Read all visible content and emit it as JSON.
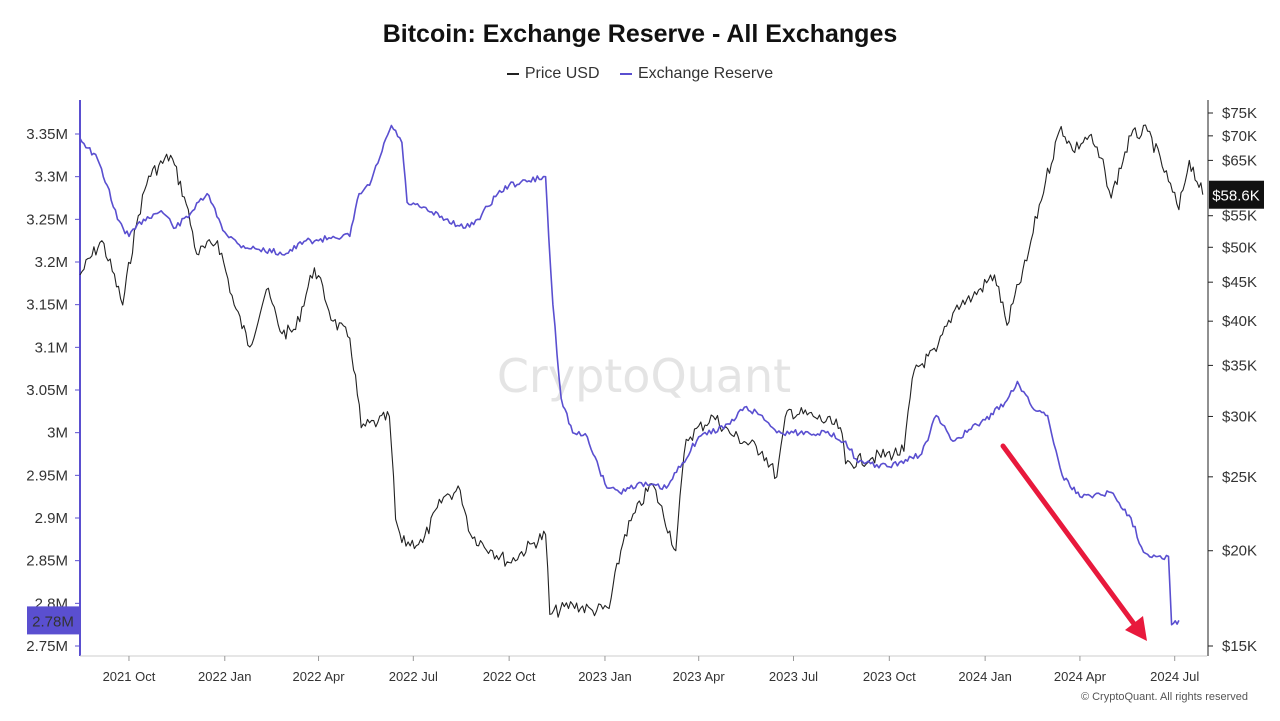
{
  "title": "Bitcoin: Exchange Reserve - All Exchanges",
  "legend": {
    "price_label": "Price USD",
    "reserve_label": "Exchange Reserve"
  },
  "watermark": "CryptoQuant",
  "copyright": "© CryptoQuant. All rights reserved",
  "colors": {
    "price": "#222222",
    "reserve": "#5a4fd0",
    "arrow": "#e8193c",
    "price_badge": "#111111",
    "reserve_badge": "#5a4fd0"
  },
  "chart_data": {
    "type": "line",
    "title": "Bitcoin: Exchange Reserve - All Exchanges",
    "x_tick_labels": [
      "2021 Oct",
      "2022 Jan",
      "2022 Apr",
      "2022 Jul",
      "2022 Oct",
      "2023 Jan",
      "2023 Apr",
      "2023 Jul",
      "2023 Oct",
      "2024 Jan",
      "2024 Apr",
      "2024 Jul"
    ],
    "x_range": [
      "2021-08-15",
      "2024-08-01"
    ],
    "left_axis": {
      "label": "Exchange Reserve",
      "range": [
        2.75,
        3.39
      ],
      "unit": "M",
      "ticks": [
        "3.35M",
        "3.3M",
        "3.25M",
        "3.2M",
        "3.15M",
        "3.1M",
        "3.05M",
        "3M",
        "2.95M",
        "2.9M",
        "2.85M",
        "2.8M",
        "2.75M"
      ]
    },
    "right_axis": {
      "label": "Price USD",
      "scale": "log",
      "range": [
        15000,
        77000
      ],
      "ticks": [
        "$75K",
        "$70K",
        "$65K",
        "$55K",
        "$50K",
        "$45K",
        "$40K",
        "$35K",
        "$30K",
        "$25K",
        "$20K",
        "$15K"
      ]
    },
    "current_values": {
      "price": "$58.6K",
      "reserve": "2.78M"
    },
    "series": [
      {
        "name": "Exchange Reserve",
        "axis": "left",
        "points": [
          [
            "2021-08-15",
            3.345
          ],
          [
            "2021-09-01",
            3.32
          ],
          [
            "2021-09-10",
            3.29
          ],
          [
            "2021-09-20",
            3.25
          ],
          [
            "2021-10-01",
            3.23
          ],
          [
            "2021-10-15",
            3.25
          ],
          [
            "2021-11-01",
            3.26
          ],
          [
            "2021-11-15",
            3.24
          ],
          [
            "2021-12-01",
            3.26
          ],
          [
            "2021-12-15",
            3.28
          ],
          [
            "2022-01-01",
            3.235
          ],
          [
            "2022-01-15",
            3.22
          ],
          [
            "2022-02-01",
            3.215
          ],
          [
            "2022-03-01",
            3.21
          ],
          [
            "2022-03-20",
            3.225
          ],
          [
            "2022-04-01",
            3.225
          ],
          [
            "2022-04-15",
            3.23
          ],
          [
            "2022-05-01",
            3.23
          ],
          [
            "2022-05-10",
            3.28
          ],
          [
            "2022-05-20",
            3.29
          ],
          [
            "2022-06-01",
            3.33
          ],
          [
            "2022-06-10",
            3.36
          ],
          [
            "2022-06-20",
            3.34
          ],
          [
            "2022-06-25",
            3.27
          ],
          [
            "2022-07-15",
            3.26
          ],
          [
            "2022-08-01",
            3.25
          ],
          [
            "2022-08-20",
            3.24
          ],
          [
            "2022-09-01",
            3.25
          ],
          [
            "2022-09-20",
            3.28
          ],
          [
            "2022-10-01",
            3.29
          ],
          [
            "2022-10-20",
            3.295
          ],
          [
            "2022-11-05",
            3.3
          ],
          [
            "2022-11-08",
            3.23
          ],
          [
            "2022-11-12",
            3.15
          ],
          [
            "2022-11-20",
            3.04
          ],
          [
            "2022-12-01",
            3.0
          ],
          [
            "2022-12-15",
            2.995
          ],
          [
            "2023-01-01",
            2.94
          ],
          [
            "2023-01-15",
            2.93
          ],
          [
            "2023-02-01",
            2.94
          ],
          [
            "2023-03-01",
            2.935
          ],
          [
            "2023-04-01",
            2.995
          ],
          [
            "2023-05-01",
            3.01
          ],
          [
            "2023-05-15",
            3.03
          ],
          [
            "2023-06-01",
            3.02
          ],
          [
            "2023-06-15",
            3.0
          ],
          [
            "2023-07-01",
            3.0
          ],
          [
            "2023-08-01",
            3.0
          ],
          [
            "2023-08-20",
            2.99
          ],
          [
            "2023-09-01",
            2.965
          ],
          [
            "2023-10-01",
            2.96
          ],
          [
            "2023-11-01",
            2.975
          ],
          [
            "2023-11-15",
            3.02
          ],
          [
            "2023-12-01",
            2.99
          ],
          [
            "2024-01-01",
            3.015
          ],
          [
            "2024-01-20",
            3.035
          ],
          [
            "2024-02-01",
            3.06
          ],
          [
            "2024-02-15",
            3.03
          ],
          [
            "2024-03-01",
            3.02
          ],
          [
            "2024-03-15",
            2.95
          ],
          [
            "2024-04-01",
            2.925
          ],
          [
            "2024-05-01",
            2.93
          ],
          [
            "2024-05-20",
            2.9
          ],
          [
            "2024-06-01",
            2.86
          ],
          [
            "2024-06-15",
            2.855
          ],
          [
            "2024-06-25",
            2.855
          ],
          [
            "2024-06-28",
            2.775
          ],
          [
            "2024-07-05",
            2.78
          ]
        ]
      },
      {
        "name": "Price USD",
        "axis": "right",
        "points": [
          [
            "2021-08-15",
            46000
          ],
          [
            "2021-09-05",
            51000
          ],
          [
            "2021-09-25",
            42000
          ],
          [
            "2021-10-10",
            55000
          ],
          [
            "2021-10-20",
            62000
          ],
          [
            "2021-11-10",
            66000
          ],
          [
            "2021-11-25",
            57000
          ],
          [
            "2021-12-05",
            49000
          ],
          [
            "2021-12-25",
            51000
          ],
          [
            "2022-01-10",
            42000
          ],
          [
            "2022-01-25",
            37000
          ],
          [
            "2022-02-10",
            44000
          ],
          [
            "2022-02-25",
            38500
          ],
          [
            "2022-03-10",
            39000
          ],
          [
            "2022-03-28",
            47000
          ],
          [
            "2022-04-15",
            40000
          ],
          [
            "2022-05-01",
            38000
          ],
          [
            "2022-05-12",
            29000
          ],
          [
            "2022-05-28",
            29500
          ],
          [
            "2022-06-08",
            30000
          ],
          [
            "2022-06-14",
            22000
          ],
          [
            "2022-06-20",
            20500
          ],
          [
            "2022-07-10",
            20500
          ],
          [
            "2022-07-30",
            23500
          ],
          [
            "2022-08-15",
            24000
          ],
          [
            "2022-08-25",
            21000
          ],
          [
            "2022-09-15",
            20000
          ],
          [
            "2022-10-01",
            19300
          ],
          [
            "2022-10-25",
            20500
          ],
          [
            "2022-11-05",
            21000
          ],
          [
            "2022-11-09",
            16500
          ],
          [
            "2022-12-01",
            17000
          ],
          [
            "2022-12-20",
            16700
          ],
          [
            "2023-01-05",
            16800
          ],
          [
            "2023-01-20",
            21000
          ],
          [
            "2023-02-15",
            24500
          ],
          [
            "2023-03-10",
            20000
          ],
          [
            "2023-03-20",
            28000
          ],
          [
            "2023-04-15",
            30000
          ],
          [
            "2023-05-01",
            28500
          ],
          [
            "2023-06-01",
            27000
          ],
          [
            "2023-06-15",
            25000
          ],
          [
            "2023-06-25",
            30500
          ],
          [
            "2023-07-20",
            30000
          ],
          [
            "2023-08-15",
            29000
          ],
          [
            "2023-08-20",
            26000
          ],
          [
            "2023-09-15",
            26500
          ],
          [
            "2023-10-15",
            27000
          ],
          [
            "2023-10-25",
            34500
          ],
          [
            "2023-11-15",
            36500
          ],
          [
            "2023-12-05",
            42000
          ],
          [
            "2023-12-20",
            43000
          ],
          [
            "2024-01-10",
            46000
          ],
          [
            "2024-01-22",
            39500
          ],
          [
            "2024-02-10",
            48000
          ],
          [
            "2024-02-28",
            61000
          ],
          [
            "2024-03-14",
            72000
          ],
          [
            "2024-03-25",
            67000
          ],
          [
            "2024-04-10",
            70000
          ],
          [
            "2024-04-25",
            63000
          ],
          [
            "2024-05-01",
            58000
          ],
          [
            "2024-05-20",
            70000
          ],
          [
            "2024-06-05",
            71000
          ],
          [
            "2024-06-25",
            61000
          ],
          [
            "2024-07-05",
            56000
          ],
          [
            "2024-07-15",
            65000
          ],
          [
            "2024-07-28",
            58600
          ]
        ]
      }
    ],
    "annotation": {
      "type": "arrow",
      "meaning": "downtrend of exchange reserve",
      "color": "#e8193c"
    }
  }
}
